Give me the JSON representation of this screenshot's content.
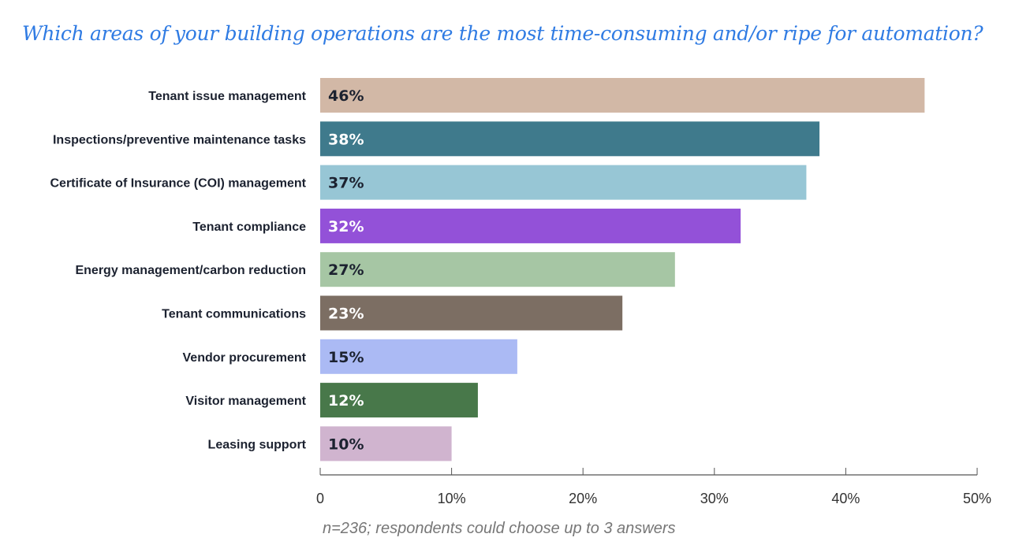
{
  "chart_data": {
    "type": "bar",
    "orientation": "horizontal",
    "title": "Which areas of your building operations are the most time-consuming and/or ripe for automation?",
    "categories": [
      "Tenant issue management",
      "Inspections/preventive maintenance tasks",
      "Certificate of Insurance (COI) management",
      "Tenant compliance",
      "Energy management/carbon reduction",
      "Tenant communications",
      "Vendor procurement",
      "Visitor management",
      "Leasing support"
    ],
    "values": [
      46,
      38,
      37,
      32,
      27,
      23,
      15,
      12,
      10
    ],
    "value_labels": [
      "46%",
      "38%",
      "37%",
      "32%",
      "27%",
      "23%",
      "15%",
      "12%",
      "10%"
    ],
    "colors": [
      "#d2b8a6",
      "#3f7a8c",
      "#97c6d5",
      "#9351d8",
      "#a6c6a4",
      "#7c6e63",
      "#abbaf4",
      "#48784a",
      "#d0b4cf"
    ],
    "label_colors": [
      "#1c2230",
      "#ffffff",
      "#1c2230",
      "#ffffff",
      "#1c2230",
      "#ffffff",
      "#1c2230",
      "#ffffff",
      "#1c2230"
    ],
    "xlim": [
      0,
      50
    ],
    "xticks": [
      0,
      10,
      20,
      30,
      40,
      50
    ],
    "xtick_labels": [
      "0",
      "10%",
      "20%",
      "30%",
      "40%",
      "50%"
    ],
    "note": "n=236; respondents could choose up to 3 answers"
  }
}
